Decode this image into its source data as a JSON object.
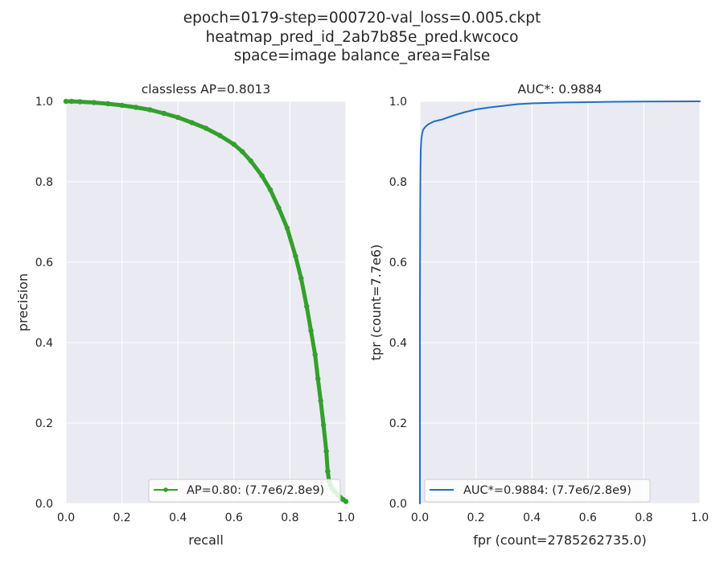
{
  "figure": {
    "suptitle_lines": [
      "epoch=0179-step=000720-val_loss=0.005.ckpt",
      "heatmap_pred_id_2ab7b85e_pred.kwcoco",
      "space=image balance_area=False"
    ]
  },
  "chart_data": [
    {
      "type": "line",
      "title": "classless AP=0.8013",
      "xlabel": "recall",
      "ylabel": "precision",
      "xlim": [
        0.0,
        1.0
      ],
      "ylim": [
        0.0,
        1.0
      ],
      "xticks": [
        "0.0",
        "0.2",
        "0.4",
        "0.6",
        "0.8",
        "1.0"
      ],
      "yticks": [
        "0.0",
        "0.2",
        "0.4",
        "0.6",
        "0.8",
        "1.0"
      ],
      "grid": true,
      "legend_position": "lower right",
      "series": [
        {
          "name": "AP=0.80: (7.7e6/2.8e9)",
          "color": "#33a02c",
          "marker": "dot",
          "x": [
            0.0,
            0.02,
            0.05,
            0.1,
            0.15,
            0.2,
            0.25,
            0.3,
            0.35,
            0.4,
            0.45,
            0.5,
            0.55,
            0.6,
            0.63,
            0.66,
            0.7,
            0.73,
            0.76,
            0.79,
            0.82,
            0.84,
            0.86,
            0.875,
            0.89,
            0.9,
            0.91,
            0.92,
            0.93,
            0.935,
            0.94,
            0.945,
            0.95,
            0.96,
            0.97,
            0.98,
            0.99,
            1.0
          ],
          "y": [
            1.0,
            1.0,
            0.999,
            0.997,
            0.994,
            0.99,
            0.985,
            0.979,
            0.97,
            0.96,
            0.947,
            0.933,
            0.915,
            0.893,
            0.875,
            0.852,
            0.815,
            0.78,
            0.735,
            0.685,
            0.615,
            0.56,
            0.49,
            0.43,
            0.37,
            0.31,
            0.255,
            0.195,
            0.13,
            0.08,
            0.055,
            0.045,
            0.038,
            0.03,
            0.022,
            0.015,
            0.01,
            0.005
          ]
        }
      ]
    },
    {
      "type": "line",
      "title": "AUC*: 0.9884",
      "xlabel": "fpr (count=2785262735.0)",
      "ylabel": "tpr (count=7.7e6)",
      "xlim": [
        0.0,
        1.0
      ],
      "ylim": [
        0.0,
        1.0
      ],
      "xticks": [
        "0.0",
        "0.2",
        "0.4",
        "0.6",
        "0.8",
        "1.0"
      ],
      "yticks": [
        "0.0",
        "0.2",
        "0.4",
        "0.6",
        "0.8",
        "1.0"
      ],
      "grid": true,
      "legend_position": "lower left",
      "series": [
        {
          "name": "AUC*=0.9884: (7.7e6/2.8e9)",
          "color": "#1f6fc4",
          "marker": "none",
          "x": [
            0.0,
            0.0,
            0.001,
            0.002,
            0.003,
            0.005,
            0.008,
            0.012,
            0.02,
            0.03,
            0.05,
            0.08,
            0.1,
            0.13,
            0.16,
            0.2,
            0.25,
            0.3,
            0.35,
            0.4,
            0.5,
            0.6,
            0.7,
            0.8,
            0.9,
            1.0
          ],
          "y": [
            0.0,
            0.5,
            0.75,
            0.84,
            0.88,
            0.905,
            0.92,
            0.93,
            0.937,
            0.943,
            0.95,
            0.955,
            0.96,
            0.967,
            0.973,
            0.98,
            0.985,
            0.989,
            0.993,
            0.995,
            0.997,
            0.998,
            0.999,
            0.9995,
            0.9998,
            1.0
          ]
        }
      ]
    }
  ]
}
